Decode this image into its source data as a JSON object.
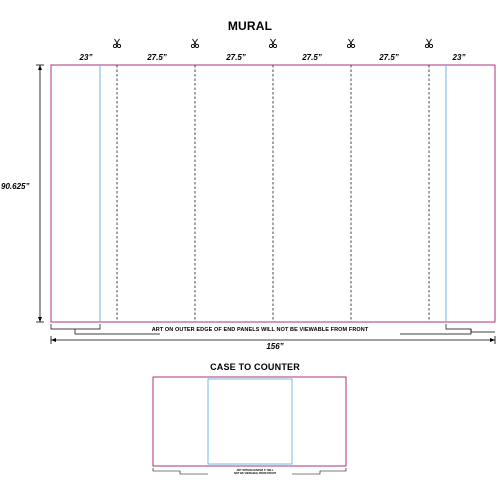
{
  "mural": {
    "title": "MURAL",
    "panel_widths": [
      "23”",
      "27.5”",
      "27.5”",
      "27.5”",
      "27.5”",
      "23”"
    ],
    "height_label": "90.625”",
    "total_width_label": "156”",
    "note": "ART ON OUTER EDGE OF END PANELS WILL NOT BE VIEWABLE FROM FRONT",
    "cut_icon": "scissors-icon",
    "cut_marks": 5
  },
  "case": {
    "title": "CASE TO COUNTER",
    "note_line1": "ART WITHIN CENTER 3″ WILL",
    "note_line2": "NOT BE VIEWABLE FROM FRONT"
  },
  "colors": {
    "outline": "#b0307a",
    "panel_edge": "#6ab4d8",
    "cut_line": "#333333",
    "dimension": "#000000"
  }
}
